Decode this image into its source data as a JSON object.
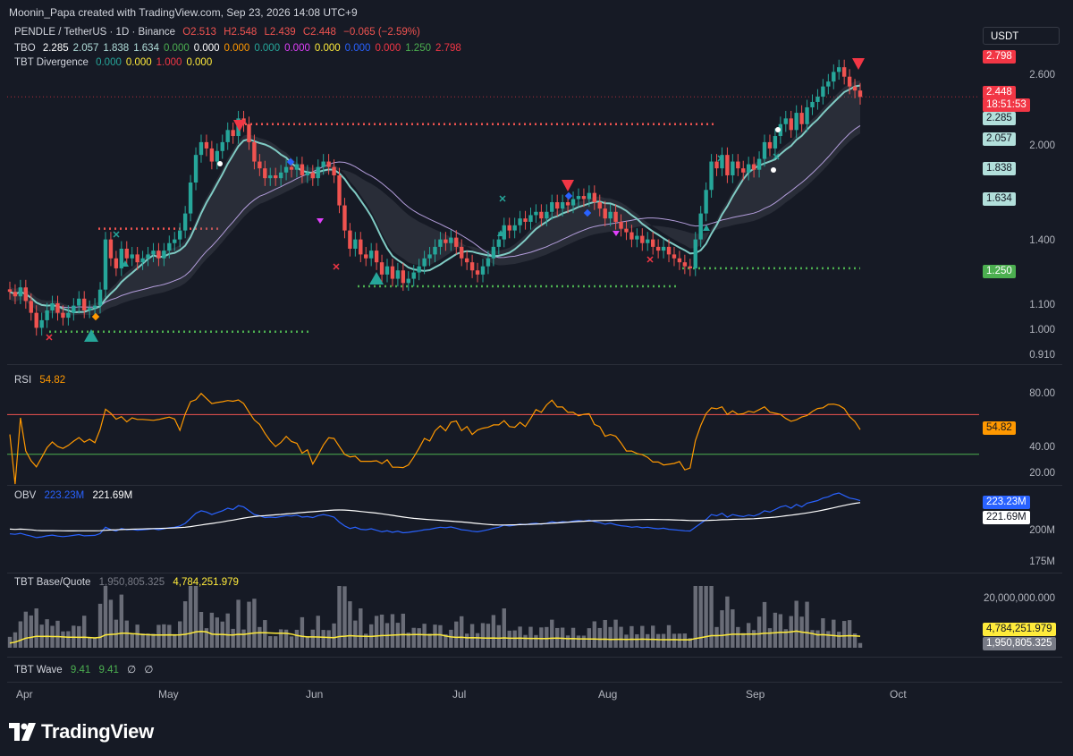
{
  "header": {
    "text": "Moonin_Papa created with TradingView.com, Sep 23, 2026 14:08 UTC+9"
  },
  "currency": "USDT",
  "symbol_legend": {
    "symbol": "PENDLE / TetherUS · 1D · Binance",
    "o": "O2.513",
    "h": "H2.548",
    "l": "L2.439",
    "c": "C2.448",
    "chg": "−0.065 (−2.59%)"
  },
  "tbo_legend": {
    "name": "TBO",
    "values": [
      {
        "v": "2.285",
        "color": "#ffffff"
      },
      {
        "v": "2.057",
        "color": "#b2dfdb"
      },
      {
        "v": "1.838",
        "color": "#b2dfdb"
      },
      {
        "v": "1.634",
        "color": "#b2dfdb"
      },
      {
        "v": "0.000",
        "color": "#4caf50"
      },
      {
        "v": "0.000",
        "color": "#ffffff"
      },
      {
        "v": "0.000",
        "color": "#ff9800"
      },
      {
        "v": "0.000",
        "color": "#26a69a"
      },
      {
        "v": "0.000",
        "color": "#e040fb"
      },
      {
        "v": "0.000",
        "color": "#ffeb3b"
      },
      {
        "v": "0.000",
        "color": "#2962ff"
      },
      {
        "v": "0.000",
        "color": "#f23645"
      },
      {
        "v": "1.250",
        "color": "#4caf50"
      },
      {
        "v": "2.798",
        "color": "#f23645"
      }
    ]
  },
  "div_legend": {
    "name": "TBT Divergence",
    "values": [
      {
        "v": "0.000",
        "color": "#26a69a"
      },
      {
        "v": "0.000",
        "color": "#ffeb3b"
      },
      {
        "v": "1.000",
        "color": "#f23645"
      },
      {
        "v": "0.000",
        "color": "#ffeb3b"
      }
    ]
  },
  "rsi_label": {
    "name": "RSI",
    "value": "54.82"
  },
  "obv_label": {
    "name": "OBV",
    "v1": "223.23M",
    "v2": "221.69M"
  },
  "bq_label": {
    "name": "TBT Base/Quote",
    "v1": "1,950,805.325",
    "v2": "4,784,251.979"
  },
  "wave_label": {
    "name": "TBT Wave",
    "v1": "9.41",
    "v2": "9.41",
    "v3": "∅",
    "v4": "∅"
  },
  "x_axis": [
    "Apr",
    "May",
    "Jun",
    "Jul",
    "Aug",
    "Sep",
    "Oct"
  ],
  "price_axis": [
    "2.600",
    "2.000",
    "1.400",
    "1.100",
    "1.000",
    "0.910"
  ],
  "price_tags": [
    {
      "text": "2.798",
      "bg": "#f23645",
      "fg": "#ffffff"
    },
    {
      "text": "2.448",
      "bg": "#f23645",
      "fg": "#ffffff"
    },
    {
      "text": "18:51:53",
      "bg": "#f23645",
      "fg": "#ffffff"
    },
    {
      "text": "2.285",
      "bg": "#b2dfdb",
      "fg": "#131722"
    },
    {
      "text": "2.057",
      "bg": "#b2dfdb",
      "fg": "#131722"
    },
    {
      "text": "1.838",
      "bg": "#b2dfdb",
      "fg": "#131722"
    },
    {
      "text": "1.634",
      "bg": "#b2dfdb",
      "fg": "#131722"
    },
    {
      "text": "1.250",
      "bg": "#4caf50",
      "fg": "#ffffff"
    }
  ],
  "rsi_axis": [
    "80.00",
    "40.00",
    "20.00"
  ],
  "rsi_tag": {
    "text": "54.82",
    "bg": "#ff9800",
    "fg": "#131722"
  },
  "obv_axis": [
    "200M",
    "175M"
  ],
  "obv_tags": [
    {
      "text": "223.23M",
      "bg": "#2962ff",
      "fg": "#ffffff"
    },
    {
      "text": "221.69M",
      "bg": "#ffffff",
      "fg": "#131722"
    }
  ],
  "bq_axis": [
    "20,000,000.000"
  ],
  "bq_tags": [
    {
      "text": "4,784,251.979",
      "bg": "#ffeb3b",
      "fg": "#131722"
    },
    {
      "text": "1,950,805.325",
      "bg": "#787b86",
      "fg": "#ffffff"
    }
  ],
  "brand": "TradingView",
  "colors": {
    "up": "#26a69a",
    "down": "#ef5350",
    "rsi": "#ff9800",
    "obv": "#2962ff",
    "bq_avg": "#ffeb3b",
    "fast_ma": "#80cbc4",
    "slow_ma": "#f48fb1"
  },
  "chart_data": {
    "type": "candlestick",
    "x_range": [
      "2026-03-28",
      "2026-09-23"
    ],
    "price_ylim": [
      0.88,
      2.9
    ],
    "y_scale": "log",
    "support_lines": [
      1.46,
      1.25,
      1.165,
      0.975
    ],
    "resistance_lines": [
      2.2
    ],
    "candles_close": [
      1.14,
      1.12,
      1.16,
      1.1,
      1.05,
      0.99,
      1.02,
      1.06,
      1.09,
      1.05,
      1.03,
      1.05,
      1.08,
      1.11,
      1.06,
      1.07,
      1.08,
      1.15,
      1.4,
      1.3,
      1.25,
      1.35,
      1.3,
      1.32,
      1.28,
      1.3,
      1.32,
      1.34,
      1.3,
      1.34,
      1.38,
      1.4,
      1.45,
      1.55,
      1.75,
      1.95,
      2.05,
      2.0,
      1.9,
      1.98,
      2.05,
      2.15,
      2.1,
      2.25,
      2.2,
      2.05,
      1.9,
      1.85,
      1.78,
      1.8,
      1.78,
      1.82,
      1.86,
      1.84,
      1.88,
      1.8,
      1.82,
      1.78,
      1.86,
      1.9,
      1.86,
      1.8,
      1.6,
      1.45,
      1.35,
      1.4,
      1.32,
      1.3,
      1.34,
      1.28,
      1.22,
      1.26,
      1.2,
      1.24,
      1.18,
      1.2,
      1.23,
      1.26,
      1.3,
      1.32,
      1.36,
      1.4,
      1.38,
      1.41,
      1.36,
      1.3,
      1.28,
      1.24,
      1.22,
      1.26,
      1.3,
      1.36,
      1.4,
      1.48,
      1.45,
      1.48,
      1.52,
      1.5,
      1.54,
      1.56,
      1.52,
      1.56,
      1.62,
      1.58,
      1.62,
      1.6,
      1.64,
      1.66,
      1.64,
      1.68,
      1.62,
      1.58,
      1.52,
      1.56,
      1.5,
      1.46,
      1.44,
      1.4,
      1.42,
      1.38,
      1.4,
      1.36,
      1.34,
      1.36,
      1.32,
      1.3,
      1.28,
      1.26,
      1.25,
      1.4,
      1.55,
      1.7,
      1.9,
      1.85,
      1.95,
      1.8,
      1.9,
      1.85,
      1.82,
      1.88,
      1.84,
      1.92,
      2.05,
      2.0,
      2.1,
      2.2,
      2.25,
      2.15,
      2.3,
      2.2,
      2.35,
      2.4,
      2.45,
      2.55,
      2.6,
      2.7,
      2.75,
      2.65,
      2.55,
      2.51,
      2.448
    ],
    "rsi": {
      "ylim": [
        10,
        100
      ],
      "overbought": 70,
      "oversold": 30,
      "last": 54.82
    },
    "obv": {
      "ylim": [
        170,
        230
      ],
      "unit": "M",
      "last": 223.23,
      "ma_last": 221.69
    },
    "base_quote": {
      "last_bar": 1950805.325,
      "ma_last": 4784251.979,
      "axis_max": 20000000
    }
  }
}
